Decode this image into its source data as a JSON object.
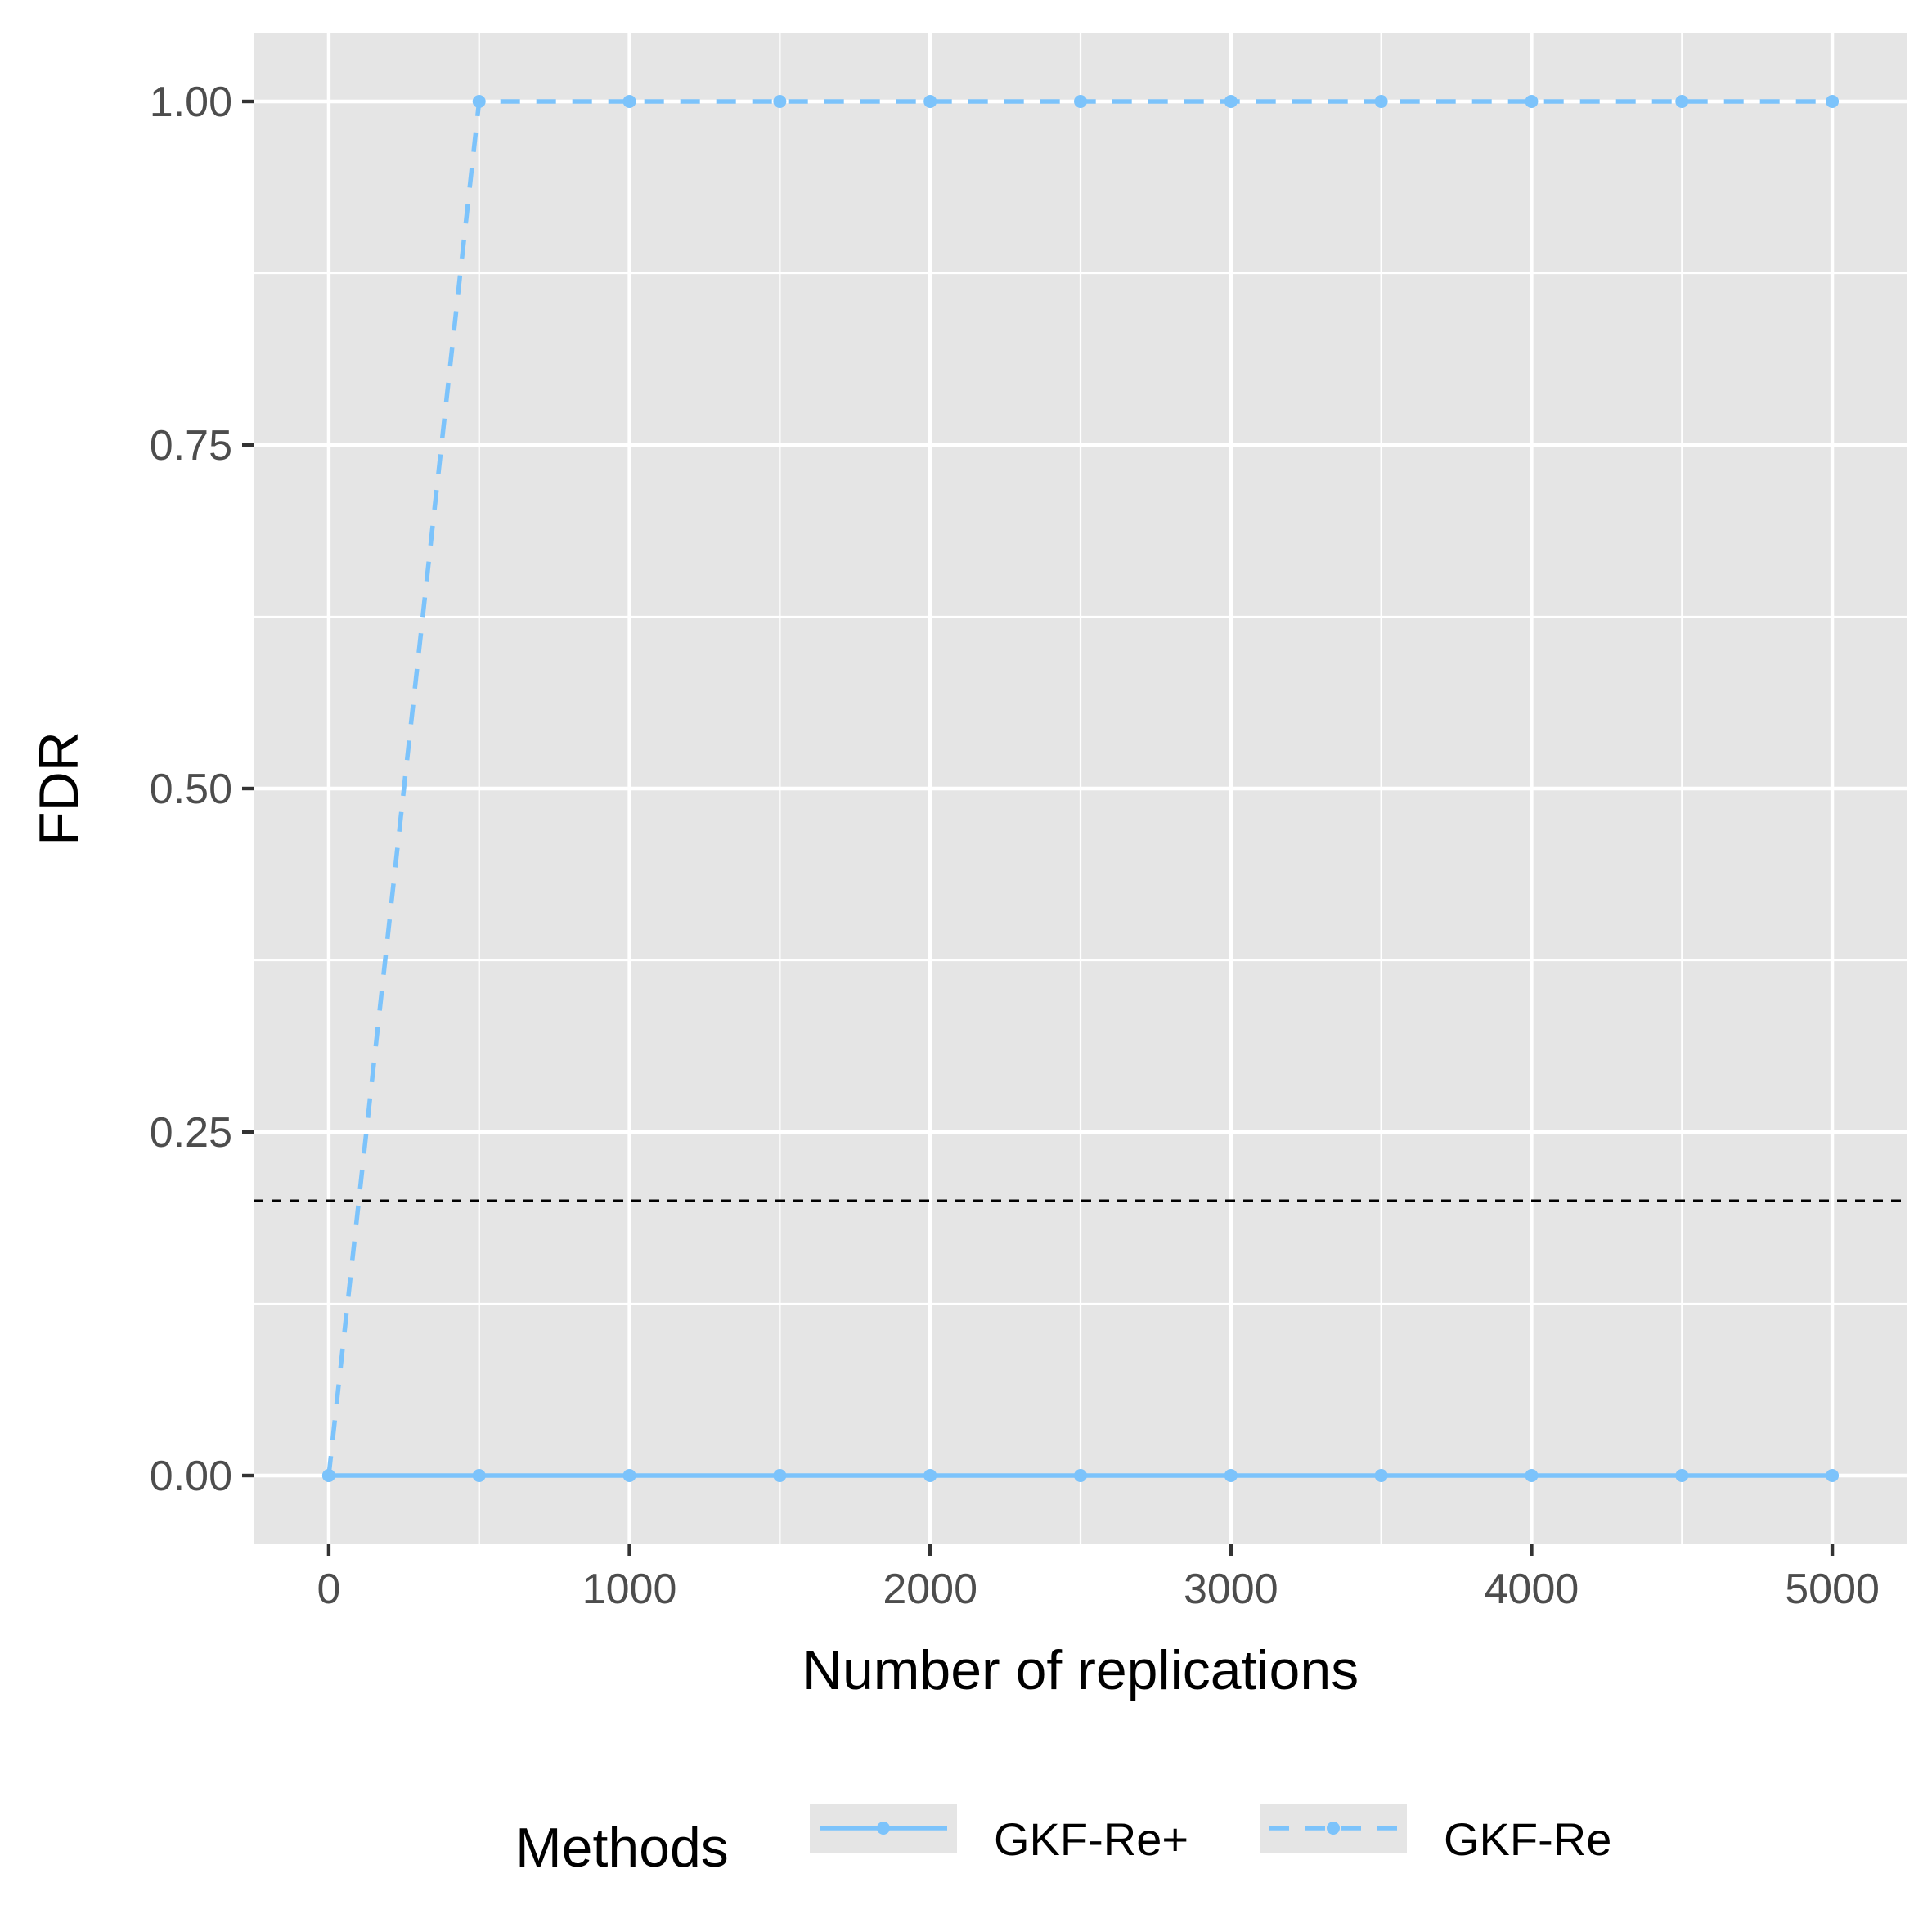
{
  "chart_data": {
    "type": "line",
    "title": "",
    "xlabel": "Number of replications",
    "ylabel": "FDR",
    "xlim": [
      -250,
      5250
    ],
    "ylim": [
      -0.05,
      1.05
    ],
    "x_ticks": [
      "0",
      "1000",
      "2000",
      "3000",
      "4000",
      "5000"
    ],
    "y_ticks": [
      "0.00",
      "0.25",
      "0.50",
      "0.75",
      "1.00"
    ],
    "grid": true,
    "reference_line": {
      "y": 0.2,
      "style": "dashed",
      "color": "#000000"
    },
    "legend": {
      "title": "Methods",
      "position": "bottom"
    },
    "series": [
      {
        "name": "GKF-Re+",
        "line_style": "solid",
        "color": "#7cc3fb",
        "x": [
          0,
          500,
          1000,
          1500,
          2000,
          2500,
          3000,
          3500,
          4000,
          4500,
          5000
        ],
        "values": [
          0,
          0,
          0,
          0,
          0,
          0,
          0,
          0,
          0,
          0,
          0
        ]
      },
      {
        "name": "GKF-Re",
        "line_style": "dashed",
        "color": "#7cc3fb",
        "x": [
          0,
          500,
          1000,
          1500,
          2000,
          2500,
          3000,
          3500,
          4000,
          4500,
          5000
        ],
        "values": [
          0,
          1,
          1,
          1,
          1,
          1,
          1,
          1,
          1,
          1,
          1
        ]
      }
    ]
  },
  "colors": {
    "panel_background": "#e5e5e5",
    "grid": "#ffffff",
    "series": "#7cc3fb"
  }
}
